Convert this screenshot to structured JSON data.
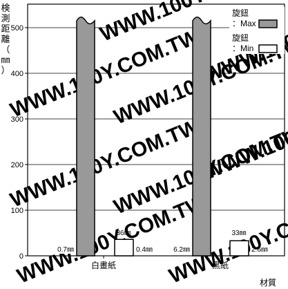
{
  "chart_data": {
    "type": "bar",
    "title": "",
    "ylabel": "検測距離（㎜）",
    "xlabel": "材質",
    "ylim": [
      0,
      520
    ],
    "yticks": [
      0,
      100,
      200,
      300,
      400,
      500
    ],
    "grid": true,
    "broken_axis_max_bars": true,
    "categories": [
      "白畫紙",
      "黑紙"
    ],
    "series": [
      {
        "name": "旋鈕：Max",
        "fill": "#999999",
        "values": [
          520,
          520
        ]
      },
      {
        "name": "旋鈕：Min",
        "fill": "#ffffff",
        "values": [
          36,
          33
        ]
      }
    ],
    "value_labels": [
      {
        "category": "白畫紙",
        "max_side": "0.7㎜",
        "min_top": "36㎜",
        "min_side": "0.4㎜"
      },
      {
        "category": "黑紙",
        "max_side": "6.2㎜",
        "min_top": "33㎜",
        "min_side": "2.6㎜"
      }
    ],
    "legend": {
      "position": "top-right",
      "items": [
        {
          "line1": "旋鈕",
          "line2": "：Max",
          "fill": "#999999"
        },
        {
          "line1": "旋鈕",
          "line2": "：Min",
          "fill": "#ffffff"
        }
      ]
    },
    "watermark": "WWW.100Y.COM.TW"
  }
}
